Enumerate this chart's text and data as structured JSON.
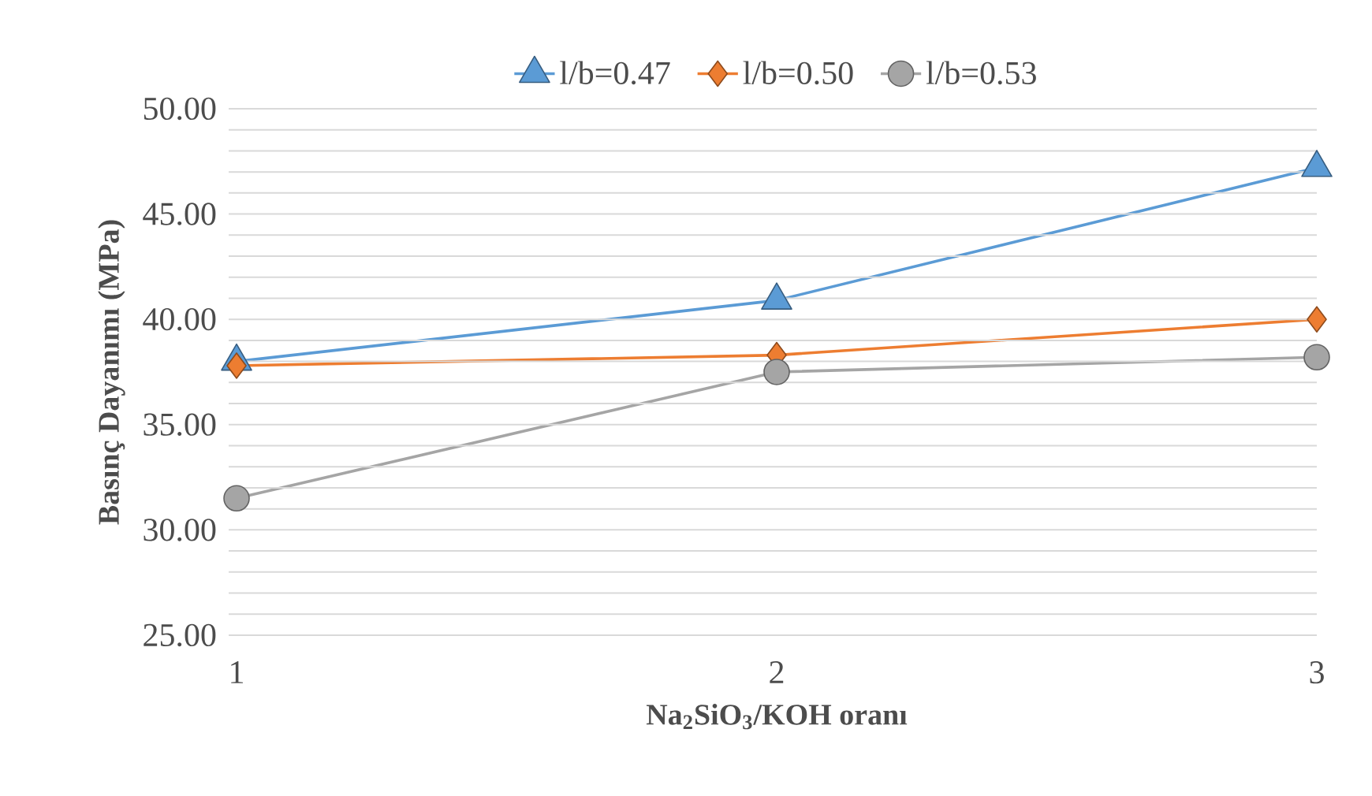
{
  "chart_data": {
    "type": "line",
    "xlabel": "Na$_{2}$SiO$_{3}$/KOH oranı",
    "ylabel": "Basınç Dayanımı (MPa)",
    "categories": [
      "1",
      "2",
      "3"
    ],
    "series": [
      {
        "name": "l/b=0.47",
        "color": "#5b9bd5",
        "marker": "triangle",
        "values": [
          38.0,
          40.9,
          47.2
        ]
      },
      {
        "name": "l/b=0.50",
        "color": "#ed7d31",
        "marker": "diamond",
        "values": [
          37.8,
          38.3,
          40.0
        ]
      },
      {
        "name": "l/b=0.53",
        "color": "#a5a5a5",
        "marker": "circle",
        "values": [
          31.5,
          37.5,
          38.2
        ]
      }
    ],
    "ylim": [
      25,
      50
    ],
    "yticks": [
      {
        "value": 25,
        "label": "25.00"
      },
      {
        "value": 26,
        "label": null
      },
      {
        "value": 27,
        "label": null
      },
      {
        "value": 28,
        "label": null
      },
      {
        "value": 29,
        "label": null
      },
      {
        "value": 30,
        "label": "30.00"
      },
      {
        "value": 31,
        "label": null
      },
      {
        "value": 32,
        "label": null
      },
      {
        "value": 33,
        "label": null
      },
      {
        "value": 34,
        "label": null
      },
      {
        "value": 35,
        "label": "35.00"
      },
      {
        "value": 36,
        "label": null
      },
      {
        "value": 37,
        "label": null
      },
      {
        "value": 38,
        "label": null
      },
      {
        "value": 39,
        "label": null
      },
      {
        "value": 40,
        "label": "40.00"
      },
      {
        "value": 41,
        "label": null
      },
      {
        "value": 42,
        "label": null
      },
      {
        "value": 43,
        "label": null
      },
      {
        "value": 44,
        "label": null
      },
      {
        "value": 45,
        "label": "45.00"
      },
      {
        "value": 46,
        "label": null
      },
      {
        "value": 47,
        "label": null
      },
      {
        "value": 48,
        "label": null
      },
      {
        "value": 49,
        "label": null
      },
      {
        "value": 50,
        "label": "50.00"
      }
    ],
    "grid": "y",
    "legend": "top",
    "line_style": "solid"
  }
}
